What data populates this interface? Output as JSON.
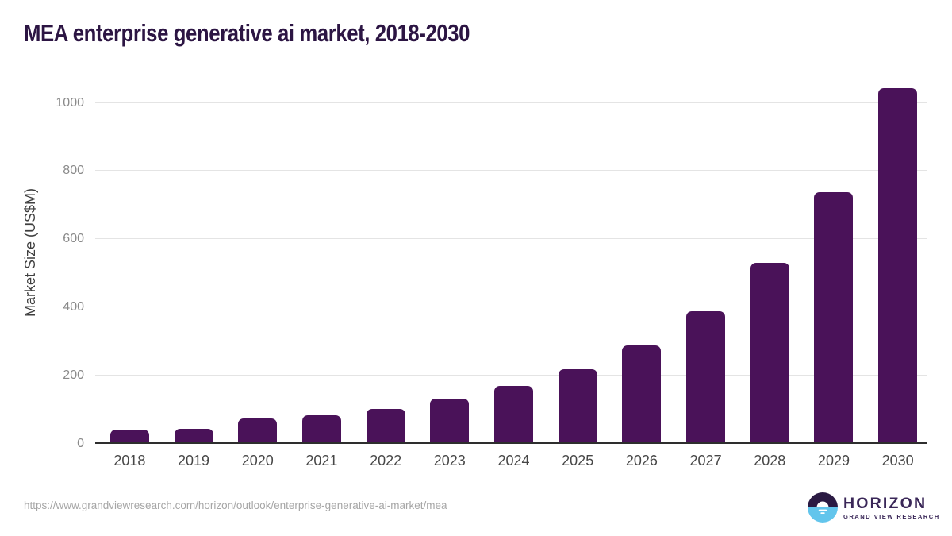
{
  "chart": {
    "title": "MEA enterprise generative ai market, 2018-2030"
  },
  "chart_data": {
    "type": "bar",
    "title": "MEA enterprise generative ai market, 2018-2030",
    "categories": [
      "2018",
      "2019",
      "2020",
      "2021",
      "2022",
      "2023",
      "2024",
      "2025",
      "2026",
      "2027",
      "2028",
      "2029",
      "2030"
    ],
    "values": [
      41,
      44,
      75,
      83,
      103,
      132,
      169,
      218,
      288,
      389,
      531,
      738,
      1042
    ],
    "xlabel": "",
    "ylabel": "Market Size (US$M)",
    "ylim": [
      0,
      1078
    ],
    "yticks": [
      0,
      200,
      400,
      600,
      800,
      1000
    ],
    "grid": "horizontal",
    "legend": "none",
    "bar_color": "#4a1259"
  },
  "footer": {
    "url": "https://www.grandviewresearch.com/horizon/outlook/enterprise-generative-ai-market/mea",
    "logo": {
      "name": "HORIZON",
      "subtitle": "GRAND VIEW RESEARCH"
    }
  },
  "colors": {
    "bar": "#4a1259",
    "title": "#2c1543",
    "axis_line": "#2e2e2e",
    "gridline": "#e4e4e4",
    "y_tick_label": "#8a8a8a",
    "x_tick_label": "#474747",
    "url_text": "#a6a6a6",
    "logo_purple": "#2b1a43",
    "logo_blue": "#63c5ec",
    "logo_text": "#3a2758"
  }
}
